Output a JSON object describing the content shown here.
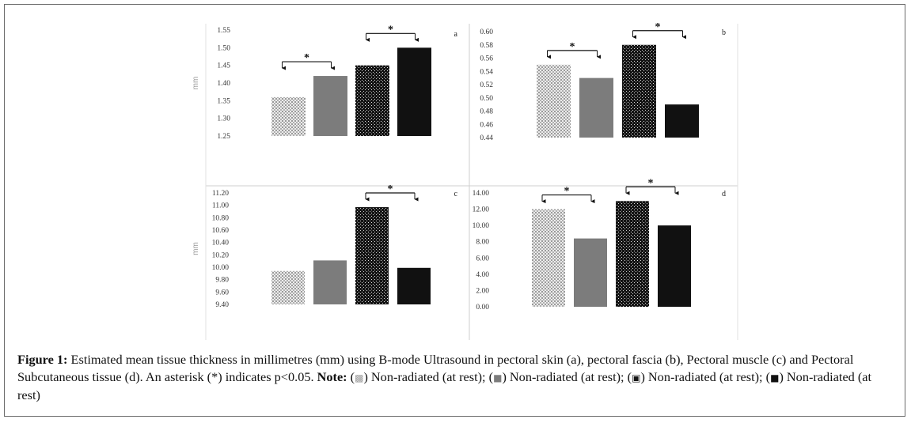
{
  "caption": {
    "label": "Figure 1:",
    "text": " Estimated mean tissue thickness in millimetres (mm) using B-mode Ultrasound in pectoral skin (a), pectoral fascia (b), Pectoral muscle (c) and  Pectoral Subcutaneous tissue (d). An asterisk (*) indicates p<0.05. ",
    "note_label": "Note:",
    "legend_items": [
      {
        "pre": " (",
        "icon_name": "light-hatched-square-icon",
        "icon": "▩",
        "post": ") Non-radiated (at rest);"
      },
      {
        "pre": " (",
        "icon_name": "gray-square-icon",
        "icon": "■",
        "post": ") Non-radiated (at rest);"
      },
      {
        "pre": " (",
        "icon_name": "dotted-dark-square-icon",
        "icon": "▣",
        "post": ") Non-radiated (at rest);"
      },
      {
        "pre": " (",
        "icon_name": "black-square-icon",
        "icon": "■",
        "post": ") Non-radiated (at rest)"
      }
    ]
  },
  "colors": {
    "light_pattern": "#b8b8b8",
    "medium_gray": "#7c7c7c",
    "dark_dotted": "#151515",
    "black": "#111111",
    "axis_text": "#333333",
    "panel_border": "#cfcfcf"
  },
  "chart_data": [
    {
      "type": "bar",
      "panel_label": "a",
      "ylabel": "mm",
      "categories": [
        "",
        "",
        "",
        ""
      ],
      "values": [
        1.36,
        1.42,
        1.45,
        1.5
      ],
      "ylim": [
        1.25,
        1.55
      ],
      "yticks": [
        "1.25",
        "1.30",
        "1.35",
        "1.40",
        "1.45",
        "1.50",
        "1.55"
      ],
      "significance": [
        {
          "bars": [
            0,
            1
          ],
          "label": "*"
        },
        {
          "bars": [
            2,
            3
          ],
          "label": "*"
        }
      ]
    },
    {
      "type": "bar",
      "panel_label": "b",
      "ylabel": "",
      "categories": [
        "",
        "",
        "",
        ""
      ],
      "values": [
        0.55,
        0.53,
        0.58,
        0.49
      ],
      "ylim": [
        0.44,
        0.6
      ],
      "yticks": [
        "0.44",
        "0.46",
        "0.48",
        "0.50",
        "0.52",
        "0.54",
        "0.56",
        "0.58",
        "0.60"
      ],
      "significance": [
        {
          "bars": [
            0,
            1
          ],
          "label": "*"
        },
        {
          "bars": [
            2,
            3
          ],
          "label": "*"
        }
      ]
    },
    {
      "type": "bar",
      "panel_label": "c",
      "ylabel": "mm",
      "categories": [
        "",
        "",
        "",
        ""
      ],
      "values": [
        9.94,
        10.11,
        10.97,
        9.99
      ],
      "ylim": [
        9.4,
        11.2
      ],
      "yticks": [
        "9.40",
        "9.60",
        "9.80",
        "10.00",
        "10.20",
        "10.40",
        "10.60",
        "10.80",
        "11.00",
        "11.20"
      ],
      "significance": [
        {
          "bars": [
            2,
            3
          ],
          "label": "*"
        }
      ]
    },
    {
      "type": "bar",
      "panel_label": "d",
      "ylabel": "",
      "categories": [
        "",
        "",
        "",
        ""
      ],
      "values": [
        12.0,
        8.4,
        13.0,
        10.0
      ],
      "ylim": [
        0.0,
        14.0
      ],
      "yticks": [
        "0.00",
        "2.00",
        "4.00",
        "6.00",
        "8.00",
        "10.00",
        "12.00",
        "14.00"
      ],
      "significance": [
        {
          "bars": [
            0,
            1
          ],
          "label": "*"
        },
        {
          "bars": [
            2,
            3
          ],
          "label": "*"
        }
      ]
    }
  ]
}
